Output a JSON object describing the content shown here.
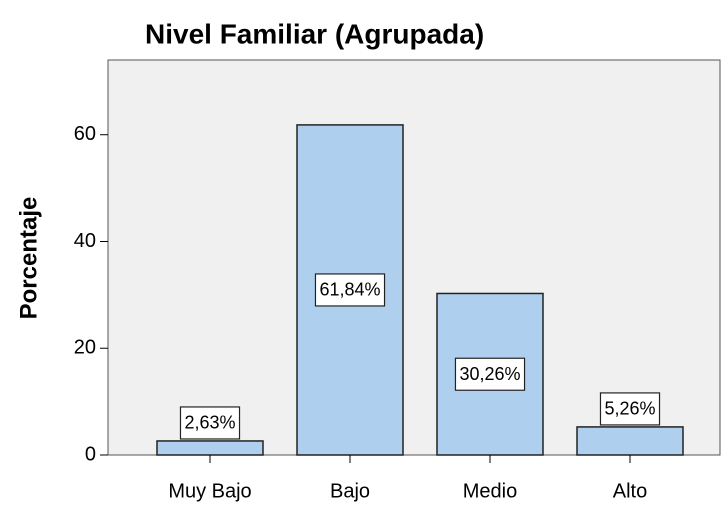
{
  "chart_data": {
    "type": "bar",
    "title": "Nivel Familiar (Agrupada)",
    "y_label": "Porcentaje",
    "categories": [
      "Muy Bajo",
      "Bajo",
      "Medio",
      "Alto"
    ],
    "values": [
      2.63,
      61.84,
      30.26,
      5.26
    ],
    "value_labels": [
      "2,63%",
      "61,84%",
      "30,26%",
      "5,26%"
    ],
    "color": "#aed0ee",
    "ylim": [
      0,
      74
    ],
    "yticks": [
      0,
      20,
      40,
      60
    ]
  }
}
